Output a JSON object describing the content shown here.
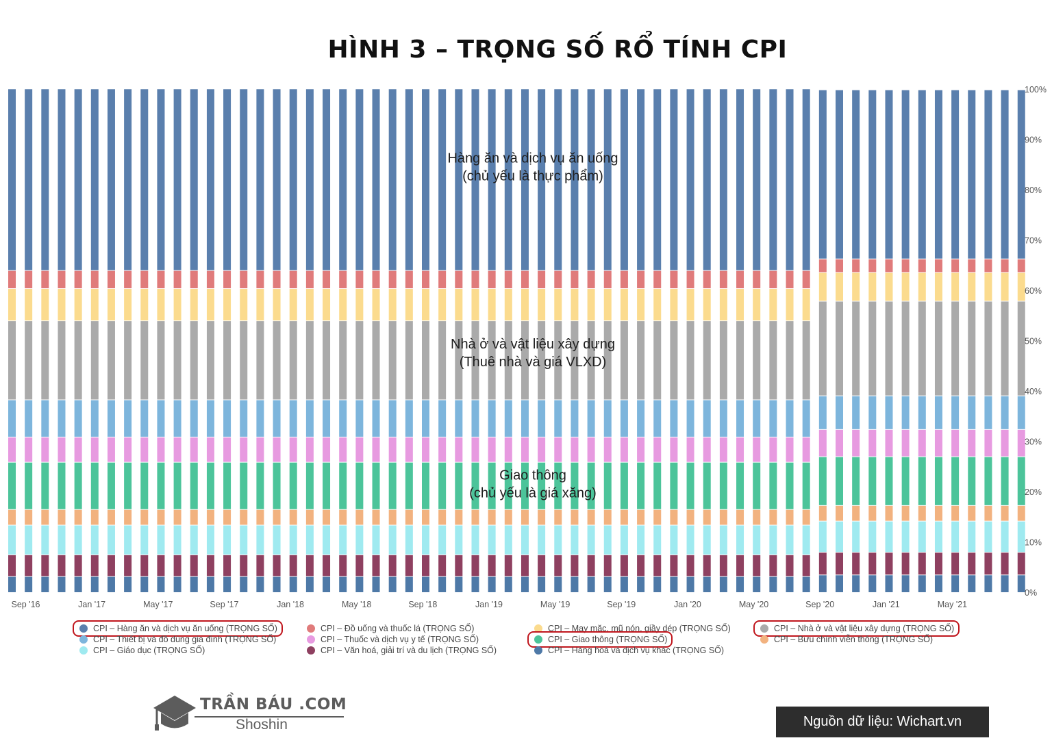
{
  "chart_data": {
    "type": "bar",
    "stacked": true,
    "normalized": true,
    "title": "HÌNH 3 – TRỌNG SỐ RỔ TÍNH CPI",
    "x_tick_labels": [
      "Sep '16",
      "Jan '17",
      "May '17",
      "Sep '17",
      "Jan '18",
      "May '18",
      "Sep '18",
      "Jan '19",
      "May '19",
      "Sep '19",
      "Jan '20",
      "May '20",
      "Sep '20",
      "Jan '21",
      "May '21"
    ],
    "y_tick_labels": [
      "0%",
      "10%",
      "20%",
      "30%",
      "40%",
      "50%",
      "60%",
      "70%",
      "80%",
      "90%",
      "100%"
    ],
    "ylim": [
      0,
      100
    ],
    "y_axis_side": "right",
    "grid": false,
    "legend_position": "bottom",
    "periods": [
      {
        "from": "Sep '16",
        "to": "Jul '20",
        "n_bars": 49
      },
      {
        "from": "Aug '20",
        "to": "Aug '21",
        "n_bars": 13
      }
    ],
    "series": [
      {
        "name": "CPI – Hàng hoá và dịch vụ khác (TRỌNG SỐ)",
        "color": "#4e79a7",
        "values": [
          3.2,
          3.5
        ]
      },
      {
        "name": "CPI – Văn hoá, giải trí và du lịch (TRỌNG SỐ)",
        "color": "#8e4060",
        "values": [
          4.3,
          4.5
        ]
      },
      {
        "name": "CPI – Giáo dục (TRỌNG SỐ)",
        "color": "#9feaf0",
        "values": [
          5.9,
          6.2
        ]
      },
      {
        "name": "CPI – Bưu chính viễn thông (TRỌNG SỐ)",
        "color": "#f2b27f",
        "values": [
          3.1,
          3.1
        ]
      },
      {
        "name": "CPI – Giao thông (TRỌNG SỐ)",
        "color": "#4cc49a",
        "values": [
          9.4,
          9.7
        ]
      },
      {
        "name": "CPI – Thuốc và dịch vụ y tế (TRỌNG SỐ)",
        "color": "#e79ae0",
        "values": [
          5.0,
          5.4
        ]
      },
      {
        "name": "CPI – Thiết bị và đồ dùng gia đình (TRỌNG SỐ)",
        "color": "#7db5dc",
        "values": [
          7.4,
          6.7
        ]
      },
      {
        "name": "CPI – Nhà ở và vật liệu xây dựng (TRỌNG SỐ)",
        "color": "#aaaaaa",
        "values": [
          15.7,
          18.8
        ]
      },
      {
        "name": "CPI – May mặc, mũ nón, giầy dép (TRỌNG SỐ)",
        "color": "#fbdb8e",
        "values": [
          6.4,
          5.7
        ]
      },
      {
        "name": "CPI – Đồ uống và thuốc lá (TRỌNG SỐ)",
        "color": "#e07b7b",
        "values": [
          3.6,
          2.7
        ]
      },
      {
        "name": "CPI – Hàng ăn và dịch vụ ăn uống (TRỌNG SỐ)",
        "color": "#5a7fad",
        "values": [
          36.1,
          33.6
        ]
      }
    ],
    "annotations": [
      {
        "lines": [
          "Hàng ăn và dịch vụ ăn uống",
          "(chủ yếu là thực phẩm)"
        ],
        "y": 85
      },
      {
        "lines": [
          "Nhà ở và vật liệu xây dựng",
          "(Thuê nhà và giá VLXD)"
        ],
        "y": 48
      },
      {
        "lines": [
          "Giao thông",
          "(chủ yếu là giá xăng)"
        ],
        "y": 22
      }
    ],
    "legend_order": [
      "CPI – Hàng ăn và dịch vụ ăn uống (TRỌNG SỐ)",
      "CPI – Đồ uống và thuốc lá (TRỌNG SỐ)",
      "CPI – May mặc, mũ nón, giầy dép (TRỌNG SỐ)",
      "CPI – Nhà ở và vật liệu xây dựng (TRỌNG SỐ)",
      "CPI – Thiết bị và đồ dùng gia đình (TRỌNG SỐ)",
      "CPI – Thuốc và dịch vụ y tế (TRỌNG SỐ)",
      "CPI – Giao thông (TRỌNG SỐ)",
      "CPI – Bưu chính viễn thông (TRỌNG SỐ)",
      "CPI – Giáo dục (TRỌNG SỐ)",
      "CPI – Văn hoá, giải trí và du lịch (TRỌNG SỐ)",
      "CPI – Hàng hoá và dịch vụ khác (TRỌNG SỐ)"
    ],
    "highlighted_legend": [
      "CPI – Hàng ăn và dịch vụ ăn uống (TRỌNG SỐ)",
      "CPI – Nhà ở và vật liệu xây dựng (TRỌNG SỐ)",
      "CPI – Giao thông (TRỌNG SỐ)"
    ],
    "highlight_color": "#c0161d"
  },
  "logo": {
    "name": "TRẦN BÁU .COM",
    "sub": "Shoshin"
  },
  "source_text": "Nguồn dữ liệu: Wichart.vn"
}
